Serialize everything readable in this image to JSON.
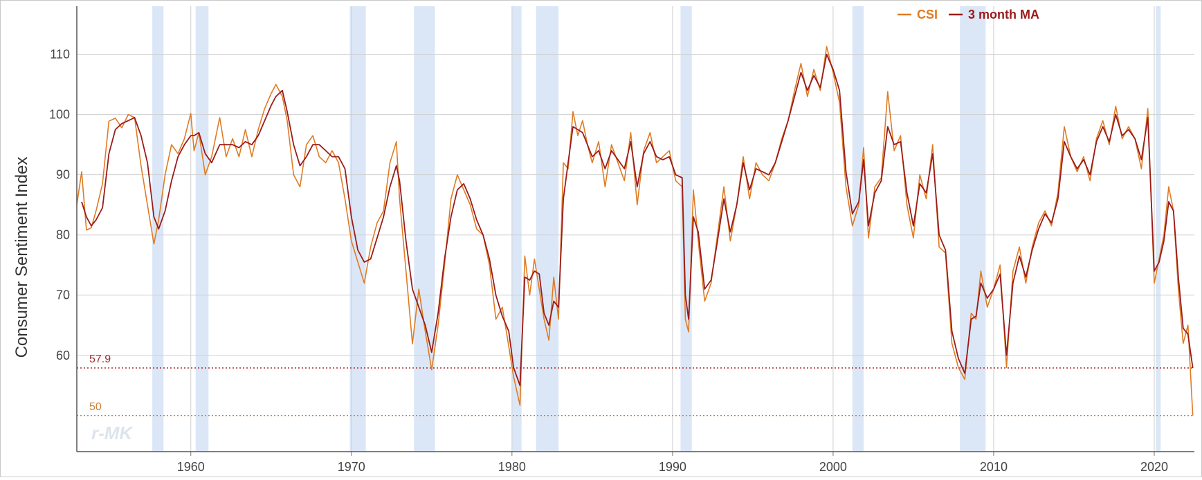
{
  "chart_data": {
    "type": "line",
    "ylabel": "Consumer Sentiment Index",
    "xlabel": "",
    "xlim": [
      1952.9,
      2022.5
    ],
    "ylim": [
      44,
      118
    ],
    "x_ticks": [
      1960,
      1970,
      1980,
      1990,
      2000,
      2010,
      2020
    ],
    "y_ticks": [
      60,
      70,
      80,
      90,
      100,
      110
    ],
    "grid": true,
    "legend_position": "top-right",
    "legend": [
      {
        "label": "CSI",
        "color": "#e07b22"
      },
      {
        "label": "3 month MA",
        "color": "#9b1b1b"
      }
    ],
    "recessions": [
      [
        1957.6,
        1958.3
      ],
      [
        1960.3,
        1961.1
      ],
      [
        1969.9,
        1970.9
      ],
      [
        1973.9,
        1975.2
      ],
      [
        1980.0,
        1980.6
      ],
      [
        1981.5,
        1982.9
      ],
      [
        1990.5,
        1991.2
      ],
      [
        2001.2,
        2001.9
      ],
      [
        2007.9,
        2009.5
      ],
      [
        2020.1,
        2020.4
      ]
    ],
    "reference_lines": [
      {
        "label": "57.9",
        "value": 57.9,
        "color": "#a32b2b"
      },
      {
        "label": "50",
        "value": 50,
        "color": "#c9803c"
      }
    ],
    "series": [
      {
        "name": "CSI",
        "color": "#e07b22",
        "x": [
          1952.9,
          1953.2,
          1953.5,
          1953.8,
          1954.1,
          1954.5,
          1954.9,
          1955.3,
          1955.7,
          1956.1,
          1956.5,
          1956.9,
          1957.3,
          1957.7,
          1958.0,
          1958.4,
          1958.8,
          1959.2,
          1959.6,
          1960.0,
          1960.2,
          1960.5,
          1960.9,
          1961.3,
          1961.8,
          1962.2,
          1962.6,
          1963.0,
          1963.4,
          1963.8,
          1964.2,
          1964.6,
          1965.0,
          1965.3,
          1965.7,
          1966.0,
          1966.4,
          1966.8,
          1967.2,
          1967.6,
          1968.0,
          1968.4,
          1968.8,
          1969.2,
          1969.6,
          1970.0,
          1970.4,
          1970.8,
          1971.2,
          1971.6,
          1972.0,
          1972.4,
          1972.8,
          1973.0,
          1973.4,
          1973.8,
          1974.2,
          1974.6,
          1975.0,
          1975.4,
          1975.8,
          1976.2,
          1976.6,
          1977.0,
          1977.4,
          1977.8,
          1978.2,
          1978.6,
          1979.0,
          1979.4,
          1979.8,
          1980.1,
          1980.5,
          1980.8,
          1981.1,
          1981.4,
          1981.7,
          1982.0,
          1982.3,
          1982.6,
          1982.9,
          1983.2,
          1983.5,
          1983.8,
          1984.1,
          1984.4,
          1984.7,
          1985.0,
          1985.4,
          1985.8,
          1986.2,
          1986.6,
          1987.0,
          1987.4,
          1987.8,
          1988.2,
          1988.6,
          1989.0,
          1989.4,
          1989.8,
          1990.2,
          1990.6,
          1990.8,
          1991.0,
          1991.3,
          1991.6,
          1992.0,
          1992.4,
          1992.8,
          1993.2,
          1993.6,
          1994.0,
          1994.4,
          1994.8,
          1995.2,
          1995.6,
          1996.0,
          1996.4,
          1996.8,
          1997.2,
          1997.6,
          1998.0,
          1998.4,
          1998.8,
          1999.2,
          1999.6,
          2000.0,
          2000.4,
          2000.8,
          2001.2,
          2001.6,
          2001.9,
          2002.2,
          2002.6,
          2003.0,
          2003.4,
          2003.8,
          2004.2,
          2004.6,
          2005.0,
          2005.4,
          2005.8,
          2006.2,
          2006.6,
          2007.0,
          2007.4,
          2007.8,
          2008.2,
          2008.6,
          2008.9,
          2009.2,
          2009.6,
          2010.0,
          2010.4,
          2010.8,
          2011.2,
          2011.6,
          2012.0,
          2012.4,
          2012.8,
          2013.2,
          2013.6,
          2014.0,
          2014.4,
          2014.8,
          2015.2,
          2015.6,
          2016.0,
          2016.4,
          2016.8,
          2017.2,
          2017.6,
          2018.0,
          2018.4,
          2018.8,
          2019.2,
          2019.6,
          2020.0,
          2020.3,
          2020.6,
          2020.9,
          2021.2,
          2021.5,
          2021.8,
          2022.1,
          2022.4
        ],
        "values": [
          85.0,
          90.5,
          80.8,
          81.2,
          84.0,
          88.5,
          98.9,
          99.4,
          97.8,
          100.0,
          99.5,
          91.5,
          85.0,
          78.5,
          82.5,
          90.0,
          95.0,
          93.5,
          96.0,
          100.2,
          94.0,
          97.0,
          90.0,
          93.0,
          99.5,
          93.0,
          96.0,
          93.0,
          97.5,
          93.0,
          97.5,
          101.0,
          103.5,
          105.0,
          103.0,
          99.0,
          90.0,
          88.0,
          95.0,
          96.5,
          93.0,
          92.0,
          94.0,
          92.0,
          86.0,
          79.0,
          75.5,
          72.0,
          78.0,
          82.0,
          84.0,
          92.0,
          95.5,
          86.0,
          74.0,
          61.9,
          71.0,
          64.0,
          57.6,
          65.0,
          75.0,
          86.0,
          90.0,
          87.5,
          85.0,
          81.0,
          80.0,
          75.0,
          66.0,
          68.0,
          61.5,
          56.5,
          51.7,
          76.5,
          70.0,
          76.0,
          71.0,
          66.0,
          62.5,
          73.0,
          66.0,
          92.0,
          91.0,
          100.5,
          96.5,
          99.0,
          95.0,
          92.0,
          95.5,
          88.0,
          95.0,
          92.0,
          89.0,
          97.0,
          85.0,
          94.0,
          97.0,
          92.0,
          93.0,
          94.0,
          89.0,
          88.0,
          66.0,
          63.9,
          87.5,
          79.0,
          69.0,
          72.0,
          80.0,
          88.0,
          79.0,
          85.0,
          93.0,
          86.0,
          92.0,
          90.0,
          89.0,
          92.0,
          96.0,
          99.0,
          104.0,
          108.5,
          103.0,
          107.5,
          104.0,
          111.3,
          107.0,
          102.0,
          88.0,
          81.5,
          85.0,
          94.5,
          79.5,
          88.0,
          89.5,
          103.8,
          94.0,
          96.5,
          85.0,
          79.5,
          90.0,
          86.0,
          95.0,
          78.0,
          77.0,
          62.0,
          58.0,
          56.0,
          67.0,
          66.0,
          74.0,
          68.0,
          71.0,
          75.0,
          58.0,
          74.0,
          78.0,
          72.0,
          78.0,
          82.0,
          84.0,
          81.5,
          87.0,
          98.0,
          93.0,
          90.5,
          93.0,
          89.0,
          96.0,
          99.0,
          95.0,
          101.4,
          96.0,
          98.0,
          96.0,
          91.0,
          101.0,
          72.0,
          76.0,
          80.0,
          88.0,
          84.0,
          71.0,
          62.0,
          65.0,
          50.0
        ]
      },
      {
        "name": "3 month MA",
        "color": "#9b1b1b",
        "x": [
          1953.2,
          1953.5,
          1953.8,
          1954.1,
          1954.5,
          1954.9,
          1955.3,
          1955.7,
          1956.1,
          1956.5,
          1956.9,
          1957.3,
          1957.7,
          1958.0,
          1958.4,
          1958.8,
          1959.2,
          1959.6,
          1960.0,
          1960.2,
          1960.5,
          1960.9,
          1961.3,
          1961.8,
          1962.2,
          1962.6,
          1963.0,
          1963.4,
          1963.8,
          1964.2,
          1964.6,
          1965.0,
          1965.3,
          1965.7,
          1966.0,
          1966.4,
          1966.8,
          1967.2,
          1967.6,
          1968.0,
          1968.4,
          1968.8,
          1969.2,
          1969.6,
          1970.0,
          1970.4,
          1970.8,
          1971.2,
          1971.6,
          1972.0,
          1972.4,
          1972.8,
          1973.0,
          1973.4,
          1973.8,
          1974.2,
          1974.6,
          1975.0,
          1975.4,
          1975.8,
          1976.2,
          1976.6,
          1977.0,
          1977.4,
          1977.8,
          1978.2,
          1978.6,
          1979.0,
          1979.4,
          1979.8,
          1980.1,
          1980.5,
          1980.8,
          1981.1,
          1981.4,
          1981.7,
          1982.0,
          1982.3,
          1982.6,
          1982.9,
          1983.2,
          1983.5,
          1983.8,
          1984.1,
          1984.4,
          1984.7,
          1985.0,
          1985.4,
          1985.8,
          1986.2,
          1986.6,
          1987.0,
          1987.4,
          1987.8,
          1988.2,
          1988.6,
          1989.0,
          1989.4,
          1989.8,
          1990.2,
          1990.6,
          1990.8,
          1991.0,
          1991.3,
          1991.6,
          1992.0,
          1992.4,
          1992.8,
          1993.2,
          1993.6,
          1994.0,
          1994.4,
          1994.8,
          1995.2,
          1995.6,
          1996.0,
          1996.4,
          1996.8,
          1997.2,
          1997.6,
          1998.0,
          1998.4,
          1998.8,
          1999.2,
          1999.6,
          2000.0,
          2000.4,
          2000.8,
          2001.2,
          2001.6,
          2001.9,
          2002.2,
          2002.6,
          2003.0,
          2003.4,
          2003.8,
          2004.2,
          2004.6,
          2005.0,
          2005.4,
          2005.8,
          2006.2,
          2006.6,
          2007.0,
          2007.4,
          2007.8,
          2008.2,
          2008.6,
          2008.9,
          2009.2,
          2009.6,
          2010.0,
          2010.4,
          2010.8,
          2011.2,
          2011.6,
          2012.0,
          2012.4,
          2012.8,
          2013.2,
          2013.6,
          2014.0,
          2014.4,
          2014.8,
          2015.2,
          2015.6,
          2016.0,
          2016.4,
          2016.8,
          2017.2,
          2017.6,
          2018.0,
          2018.4,
          2018.8,
          2019.2,
          2019.6,
          2020.0,
          2020.3,
          2020.6,
          2020.9,
          2021.2,
          2021.5,
          2021.8,
          2022.1,
          2022.4
        ],
        "values": [
          85.5,
          83.0,
          81.5,
          82.5,
          84.5,
          93.5,
          97.5,
          98.5,
          99.0,
          99.5,
          96.5,
          92.0,
          83.0,
          81.0,
          84.0,
          89.0,
          93.0,
          95.0,
          96.5,
          96.5,
          97.0,
          93.5,
          92.0,
          95.0,
          95.0,
          95.0,
          94.5,
          95.5,
          95.0,
          96.5,
          99.0,
          101.5,
          103.0,
          104.0,
          100.5,
          95.0,
          91.5,
          93.0,
          95.0,
          95.0,
          94.0,
          93.0,
          93.0,
          91.0,
          83.0,
          77.5,
          75.5,
          76.0,
          79.5,
          83.0,
          88.0,
          91.5,
          89.0,
          79.0,
          71.0,
          68.0,
          65.0,
          60.5,
          67.0,
          76.0,
          83.0,
          87.5,
          88.5,
          86.0,
          82.5,
          80.0,
          76.0,
          70.0,
          66.5,
          64.0,
          58.0,
          55.0,
          73.0,
          72.5,
          74.0,
          73.5,
          67.0,
          65.0,
          69.0,
          68.0,
          86.0,
          92.0,
          98.0,
          97.5,
          97.0,
          95.0,
          93.0,
          94.0,
          91.0,
          94.0,
          92.5,
          91.0,
          95.5,
          88.0,
          93.5,
          95.5,
          93.0,
          92.5,
          93.0,
          90.0,
          89.5,
          70.0,
          66.0,
          83.0,
          80.5,
          71.0,
          72.5,
          79.0,
          86.0,
          80.5,
          85.0,
          92.0,
          87.5,
          91.0,
          90.5,
          90.0,
          92.0,
          95.5,
          99.0,
          103.0,
          107.0,
          104.0,
          106.5,
          104.5,
          110.0,
          107.5,
          104.0,
          90.5,
          83.5,
          85.5,
          92.5,
          81.5,
          87.0,
          89.0,
          98.0,
          95.0,
          95.5,
          87.0,
          81.5,
          88.5,
          87.0,
          93.5,
          80.0,
          77.5,
          64.0,
          59.5,
          57.0,
          66.0,
          66.5,
          72.0,
          69.5,
          71.0,
          73.5,
          60.0,
          72.0,
          76.5,
          73.0,
          77.5,
          81.0,
          83.5,
          82.0,
          86.0,
          95.5,
          93.0,
          91.0,
          92.5,
          90.0,
          95.5,
          98.0,
          95.5,
          100.0,
          96.5,
          97.5,
          96.0,
          92.5,
          99.5,
          74.0,
          75.5,
          79.0,
          85.5,
          84.0,
          73.0,
          64.5,
          63.5,
          57.9
        ]
      }
    ]
  }
}
